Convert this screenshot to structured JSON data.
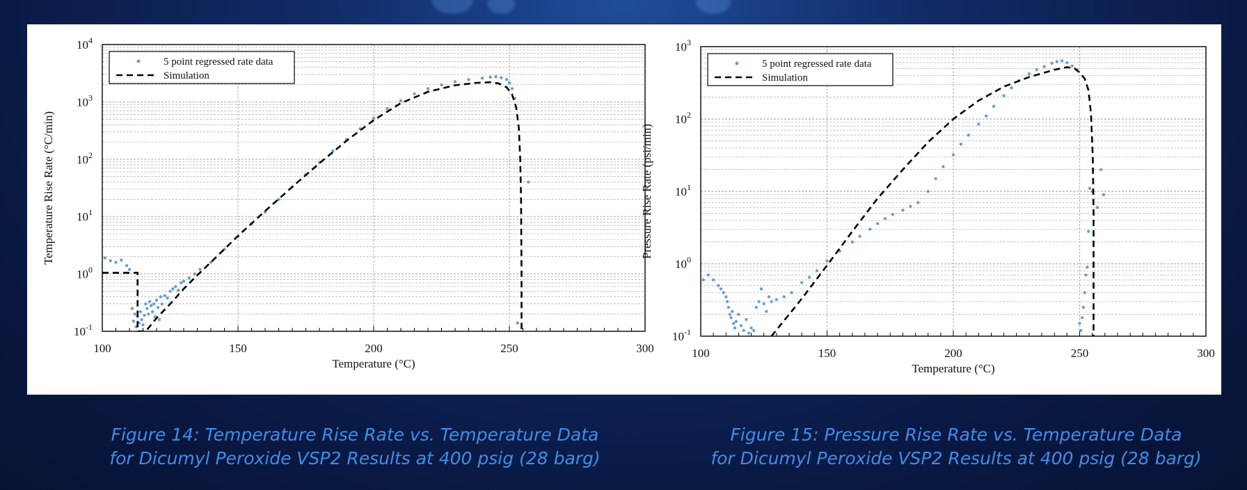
{
  "theme": {
    "caption_color": "#3f8ee8",
    "data_color": "#6a9fd4",
    "sim_color": "#000000",
    "grid_color": "#9a9a9a"
  },
  "captions": {
    "left": {
      "line1": "Figure 14:  Temperature Rise Rate vs. Temperature Data",
      "line2": "for Dicumyl Peroxide VSP2 Results at 400 psig (28 barg)"
    },
    "right": {
      "line1": "Figure 15:  Pressure Rise Rate vs. Temperature Data",
      "line2": "for Dicumyl Peroxide VSP2 Results at 400 psig (28 barg)"
    }
  },
  "chart_data": [
    {
      "type": "scatter",
      "xlabel": "Temperature (°C)",
      "ylabel": "Temperature Rise Rate (°C/min)",
      "xlim": [
        100,
        300
      ],
      "ylim_log10": [
        -1,
        4
      ],
      "yscale": "log",
      "x_ticks": [
        "100",
        "150",
        "200",
        "250",
        "300"
      ],
      "y_ticks": [
        {
          "base": "10",
          "exp": "-1"
        },
        {
          "base": "10",
          "exp": "0"
        },
        {
          "base": "10",
          "exp": "1"
        },
        {
          "base": "10",
          "exp": "2"
        },
        {
          "base": "10",
          "exp": "3"
        },
        {
          "base": "10",
          "exp": "4"
        }
      ],
      "legend": {
        "position": "top-left",
        "scatter_label": "5 point regressed rate data",
        "line_label": "Simulation"
      },
      "series": [
        {
          "name": "5 point regressed rate data",
          "kind": "scatter",
          "points": [
            [
              101,
              1.9
            ],
            [
              103,
              1.7
            ],
            [
              105,
              1.6
            ],
            [
              107,
              1.75
            ],
            [
              109,
              1.4
            ],
            [
              110,
              1.2
            ],
            [
              111,
              0.25
            ],
            [
              111.5,
              0.15
            ],
            [
              112,
              0.2
            ],
            [
              112.5,
              0.12
            ],
            [
              113,
              0.18
            ],
            [
              113.5,
              0.14
            ],
            [
              114,
              0.22
            ],
            [
              114.5,
              0.16
            ],
            [
              115,
              0.13
            ],
            [
              115.5,
              0.19
            ],
            [
              116,
              0.3
            ],
            [
              116.5,
              0.25
            ],
            [
              117,
              0.2
            ],
            [
              117.5,
              0.33
            ],
            [
              118,
              0.28
            ],
            [
              118.5,
              0.22
            ],
            [
              119,
              0.3
            ],
            [
              119.5,
              0.18
            ],
            [
              120,
              0.35
            ],
            [
              120.5,
              0.26
            ],
            [
              121,
              0.16
            ],
            [
              121.5,
              0.4
            ],
            [
              122,
              0.3
            ],
            [
              123,
              0.42
            ],
            [
              124,
              0.38
            ],
            [
              125,
              0.5
            ],
            [
              126,
              0.55
            ],
            [
              127,
              0.6
            ],
            [
              128,
              0.52
            ],
            [
              129,
              0.7
            ],
            [
              130,
              0.75
            ],
            [
              132,
              0.85
            ],
            [
              134,
              1.0
            ],
            [
              136,
              1.2
            ],
            [
              140,
              1.6
            ],
            [
              145,
              2.7
            ],
            [
              150,
              4.5
            ],
            [
              155,
              7.5
            ],
            [
              160,
              12
            ],
            [
              165,
              20
            ],
            [
              170,
              33
            ],
            [
              175,
              54
            ],
            [
              180,
              88
            ],
            [
              185,
              140
            ],
            [
              190,
              220
            ],
            [
              195,
              340
            ],
            [
              200,
              520
            ],
            [
              205,
              760
            ],
            [
              210,
              1050
            ],
            [
              215,
              1380
            ],
            [
              220,
              1700
            ],
            [
              225,
              1980
            ],
            [
              230,
              2250
            ],
            [
              235,
              2450
            ],
            [
              240,
              2600
            ],
            [
              243,
              2700
            ],
            [
              245,
              2750
            ],
            [
              247,
              2650
            ],
            [
              249,
              2450
            ],
            [
              250,
              2150
            ],
            [
              251,
              1700
            ],
            [
              252,
              1150
            ],
            [
              253,
              0.14
            ],
            [
              257,
              40
            ]
          ]
        },
        {
          "name": "Simulation",
          "kind": "line",
          "style": "dashed",
          "points": [
            [
              100,
              1.05
            ],
            [
              113,
              1.05
            ],
            [
              113,
              0.1
            ],
            [
              116,
              0.1
            ],
            [
              120,
              0.17
            ],
            [
              125,
              0.3
            ],
            [
              130,
              0.55
            ],
            [
              135,
              0.95
            ],
            [
              140,
              1.6
            ],
            [
              150,
              4.6
            ],
            [
              160,
              12.5
            ],
            [
              170,
              33
            ],
            [
              180,
              85
            ],
            [
              190,
              210
            ],
            [
              200,
              480
            ],
            [
              210,
              950
            ],
            [
              220,
              1500
            ],
            [
              230,
              1950
            ],
            [
              238,
              2150
            ],
            [
              243,
              2200
            ],
            [
              246,
              2100
            ],
            [
              249,
              1800
            ],
            [
              251,
              1350
            ],
            [
              252.5,
              800
            ],
            [
              253.5,
              350
            ],
            [
              254,
              100
            ],
            [
              254.3,
              20
            ],
            [
              254.5,
              1
            ],
            [
              254.5,
              0.1
            ]
          ]
        }
      ]
    },
    {
      "type": "scatter",
      "xlabel": "Temperature (°C)",
      "ylabel": "Pressure Rise Rate (psi/min)",
      "xlim": [
        100,
        300
      ],
      "ylim_log10": [
        -1,
        3
      ],
      "yscale": "log",
      "x_ticks": [
        "100",
        "150",
        "200",
        "250",
        "300"
      ],
      "y_ticks": [
        {
          "base": "10",
          "exp": "-1"
        },
        {
          "base": "10",
          "exp": "0"
        },
        {
          "base": "10",
          "exp": "1"
        },
        {
          "base": "10",
          "exp": "2"
        },
        {
          "base": "10",
          "exp": "3"
        }
      ],
      "legend": {
        "position": "top-left",
        "scatter_label": "5 point regressed rate data",
        "line_label": "Simulation"
      },
      "series": [
        {
          "name": "5 point regressed rate data",
          "kind": "scatter",
          "points": [
            [
              101,
              0.6
            ],
            [
              103,
              0.7
            ],
            [
              105,
              0.6
            ],
            [
              107,
              0.5
            ],
            [
              108,
              0.45
            ],
            [
              109,
              0.4
            ],
            [
              110,
              0.35
            ],
            [
              110.5,
              0.3
            ],
            [
              111,
              0.25
            ],
            [
              111.5,
              0.2
            ],
            [
              112,
              0.18
            ],
            [
              112.5,
              0.22
            ],
            [
              113,
              0.15
            ],
            [
              113.5,
              0.13
            ],
            [
              114,
              0.16
            ],
            [
              115,
              0.2
            ],
            [
              116,
              0.14
            ],
            [
              117,
              0.12
            ],
            [
              118,
              0.17
            ],
            [
              119,
              0.11
            ],
            [
              120,
              0.13
            ],
            [
              121,
              0.12
            ],
            [
              122,
              0.25
            ],
            [
              123,
              0.3
            ],
            [
              124,
              0.45
            ],
            [
              125,
              0.28
            ],
            [
              126,
              0.22
            ],
            [
              127,
              0.35
            ],
            [
              128,
              0.3
            ],
            [
              130,
              0.32
            ],
            [
              133,
              0.35
            ],
            [
              136,
              0.4
            ],
            [
              140,
              0.55
            ],
            [
              143,
              0.65
            ],
            [
              146,
              0.8
            ],
            [
              150,
              1.1
            ],
            [
              155,
              1.5
            ],
            [
              160,
              2.0
            ],
            [
              163,
              2.4
            ],
            [
              167,
              3.0
            ],
            [
              170,
              3.6
            ],
            [
              173,
              4.2
            ],
            [
              176,
              4.8
            ],
            [
              180,
              5.5
            ],
            [
              183,
              6.2
            ],
            [
              186,
              7.0
            ],
            [
              190,
              10
            ],
            [
              193,
              15
            ],
            [
              196,
              22
            ],
            [
              200,
              32
            ],
            [
              203,
              45
            ],
            [
              206,
              60
            ],
            [
              210,
              85
            ],
            [
              213,
              110
            ],
            [
              216,
              150
            ],
            [
              220,
              210
            ],
            [
              223,
              270
            ],
            [
              226,
              340
            ],
            [
              230,
              420
            ],
            [
              233,
              480
            ],
            [
              236,
              530
            ],
            [
              239,
              590
            ],
            [
              241,
              620
            ],
            [
              243,
              640
            ],
            [
              245,
              600
            ],
            [
              247,
              540
            ],
            [
              249,
              480
            ],
            [
              250,
              0.15
            ],
            [
              250.5,
              0.12
            ],
            [
              251,
              0.18
            ],
            [
              251.5,
              0.25
            ],
            [
              252,
              0.4
            ],
            [
              252.5,
              0.7
            ],
            [
              253,
              0.9
            ],
            [
              253.5,
              2.8
            ],
            [
              254,
              11
            ],
            [
              255,
              10
            ],
            [
              257,
              6
            ],
            [
              258.5,
              20
            ],
            [
              259.5,
              9
            ]
          ]
        },
        {
          "name": "Simulation",
          "kind": "line",
          "style": "dashed",
          "points": [
            [
              128,
              0.1
            ],
            [
              135,
              0.2
            ],
            [
              140,
              0.33
            ],
            [
              150,
              0.95
            ],
            [
              160,
              2.8
            ],
            [
              170,
              8
            ],
            [
              180,
              20
            ],
            [
              190,
              48
            ],
            [
              200,
              100
            ],
            [
              210,
              180
            ],
            [
              220,
              280
            ],
            [
              230,
              380
            ],
            [
              240,
              480
            ],
            [
              245,
              520
            ],
            [
              248,
              500
            ],
            [
              250,
              440
            ],
            [
              252,
              360
            ],
            [
              253.5,
              250
            ],
            [
              254.5,
              120
            ],
            [
              255.2,
              30
            ],
            [
              255.5,
              5
            ],
            [
              255.5,
              0.1
            ]
          ]
        }
      ]
    }
  ]
}
